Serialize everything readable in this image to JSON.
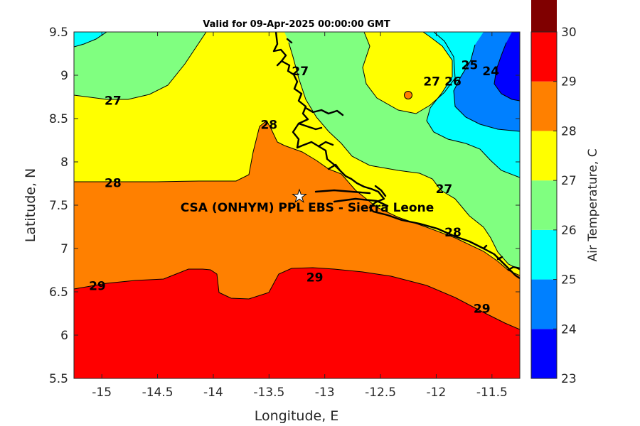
{
  "chart_data": {
    "type": "filled-contour-map",
    "title": "Valid for 09-Apr-2025 00:00:00 GMT",
    "xlabel": "Longitude, E",
    "ylabel": "Latitude, N",
    "xlim": [
      -15.25,
      -11.25
    ],
    "ylim": [
      5.5,
      9.5
    ],
    "xticks": [
      "-15",
      "-14.5",
      "-14",
      "-13.5",
      "-13",
      "-12.5",
      "-12",
      "-11.5"
    ],
    "yticks": [
      "5.5",
      "6",
      "6.5",
      "7",
      "7.5",
      "8",
      "8.5",
      "9",
      "9.5"
    ],
    "colorbar": {
      "label": "Air Temperature, C",
      "levels": [
        23,
        24,
        25,
        26,
        27,
        28,
        29,
        30
      ],
      "tick_labels": [
        "23",
        "24",
        "25",
        "26",
        "27",
        "28",
        "29",
        "30"
      ],
      "colors": [
        "#0000ff",
        "#0080ff",
        "#00ffff",
        "#80ff80",
        "#ffff00",
        "#ff8000",
        "#ff0000",
        "#800000"
      ]
    },
    "contour_labels": [
      {
        "text": "27",
        "lon": -14.9,
        "lat": 8.66
      },
      {
        "text": "28",
        "lon": -14.9,
        "lat": 7.71
      },
      {
        "text": "29",
        "lon": -15.04,
        "lat": 6.52
      },
      {
        "text": "28",
        "lon": -13.5,
        "lat": 8.38
      },
      {
        "text": "27",
        "lon": -13.22,
        "lat": 9.0
      },
      {
        "text": "29",
        "lon": -13.09,
        "lat": 6.62
      },
      {
        "text": "27",
        "lon": -12.04,
        "lat": 8.88
      },
      {
        "text": "26",
        "lon": -11.85,
        "lat": 8.88
      },
      {
        "text": "25",
        "lon": -11.7,
        "lat": 9.07
      },
      {
        "text": "24",
        "lon": -11.51,
        "lat": 9.0
      },
      {
        "text": "27",
        "lon": -11.93,
        "lat": 7.64
      },
      {
        "text": "28",
        "lon": -11.85,
        "lat": 7.14
      },
      {
        "text": "29",
        "lon": -11.59,
        "lat": 6.26
      }
    ],
    "site": {
      "name": "CSA (ONHYM) PPL EBS  - Sierra Leone",
      "lon": -13.23,
      "lat": 7.59
    },
    "marker": {
      "lon": -12.26,
      "lat": 8.76
    }
  }
}
